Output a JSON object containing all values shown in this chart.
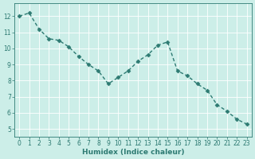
{
  "x": [
    0,
    1,
    2,
    3,
    4,
    5,
    6,
    7,
    8,
    9,
    10,
    11,
    12,
    13,
    14,
    15,
    16,
    17,
    18,
    19,
    20,
    21,
    22,
    23
  ],
  "y": [
    12.0,
    12.2,
    11.2,
    10.6,
    10.5,
    10.1,
    9.5,
    9.0,
    8.6,
    7.8,
    8.2,
    8.6,
    9.2,
    9.6,
    10.2,
    10.4,
    8.6,
    8.3,
    7.8,
    7.4,
    6.5,
    6.1,
    5.6,
    5.3
  ],
  "line_color": "#2d7a72",
  "marker": "D",
  "marker_size": 2.5,
  "linewidth": 1.0,
  "xlabel": "Humidex (Indice chaleur)",
  "xlim": [
    -0.5,
    23.5
  ],
  "ylim": [
    4.5,
    12.8
  ],
  "yticks": [
    5,
    6,
    7,
    8,
    9,
    10,
    11,
    12
  ],
  "xticks": [
    0,
    1,
    2,
    3,
    4,
    5,
    6,
    7,
    8,
    9,
    10,
    11,
    12,
    13,
    14,
    15,
    16,
    17,
    18,
    19,
    20,
    21,
    22,
    23
  ],
  "bg_color": "#cceee8",
  "grid_color": "#ffffff",
  "grid_lw": 0.6,
  "tick_color": "#2d7a72",
  "label_color": "#2d7a72",
  "xlabel_fontsize": 6.5,
  "tick_fontsize": 5.5
}
